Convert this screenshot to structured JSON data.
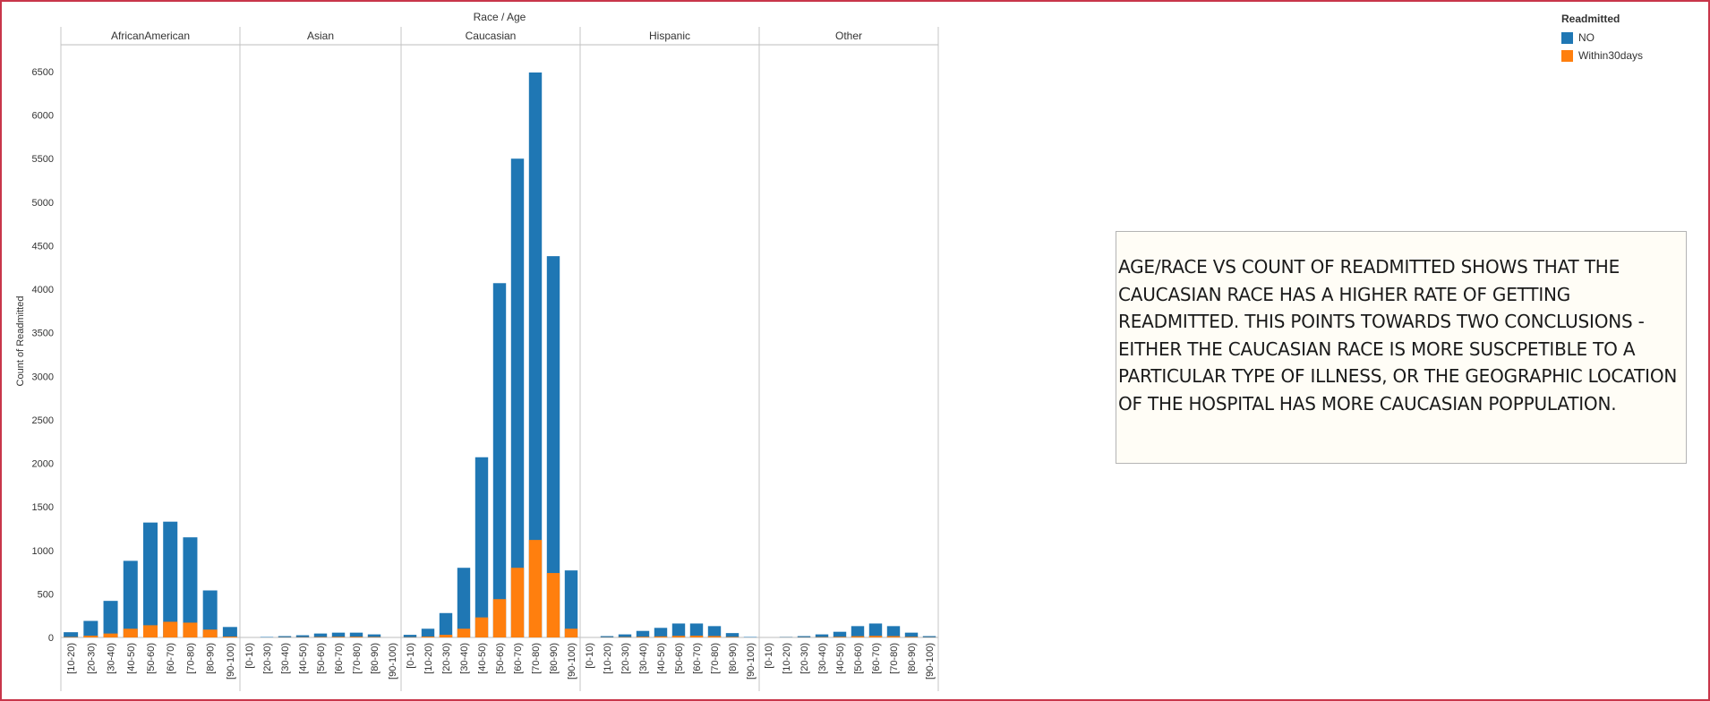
{
  "chart_data": {
    "type": "bar",
    "stacked": true,
    "title": "Race  /  Age",
    "ylabel": "Count of Readmitted",
    "ylim": [
      0,
      6800
    ],
    "yticks": [
      0,
      500,
      1000,
      1500,
      2000,
      2500,
      3000,
      3500,
      4000,
      4500,
      5000,
      5500,
      6000,
      6500
    ],
    "grid": false,
    "legend_position": "top-right",
    "series_names": [
      "NO",
      "Within30days"
    ],
    "colors": {
      "NO": "#1f77b4",
      "Within30days": "#ff7f0e"
    },
    "panels": [
      {
        "name": "AfricanAmerican",
        "categories": [
          "[10-20)",
          "[20-30)",
          "[30-40)",
          "[40-50)",
          "[50-60)",
          "[60-70)",
          "[70-80)",
          "[80-90)",
          "[90-100)"
        ],
        "NO": [
          60,
          190,
          420,
          880,
          1320,
          1330,
          1150,
          540,
          120
        ],
        "Within30days": [
          5,
          20,
          45,
          100,
          140,
          180,
          170,
          90,
          10
        ]
      },
      {
        "name": "Asian",
        "categories": [
          "[0-10)",
          "[20-30)",
          "[30-40)",
          "[40-50)",
          "[50-60)",
          "[60-70)",
          "[70-80)",
          "[80-90)",
          "[90-100)"
        ],
        "NO": [
          0,
          5,
          15,
          25,
          45,
          55,
          55,
          35,
          0
        ],
        "Within30days": [
          0,
          0,
          2,
          3,
          5,
          7,
          8,
          5,
          0
        ]
      },
      {
        "name": "Caucasian",
        "categories": [
          "[0-10)",
          "[10-20)",
          "[20-30)",
          "[30-40)",
          "[40-50)",
          "[50-60)",
          "[60-70)",
          "[70-80)",
          "[80-90)",
          "[90-100)"
        ],
        "NO": [
          30,
          100,
          280,
          800,
          2070,
          4070,
          5500,
          6490,
          4380,
          770
        ],
        "Within30days": [
          3,
          10,
          30,
          100,
          230,
          440,
          800,
          1120,
          740,
          100
        ]
      },
      {
        "name": "Hispanic",
        "categories": [
          "[0-10)",
          "[10-20)",
          "[20-30)",
          "[30-40)",
          "[40-50)",
          "[50-60)",
          "[60-70)",
          "[70-80)",
          "[80-90)",
          "[90-100)"
        ],
        "NO": [
          0,
          15,
          35,
          75,
          110,
          160,
          160,
          130,
          50,
          5
        ],
        "Within30days": [
          0,
          2,
          4,
          8,
          12,
          18,
          20,
          16,
          6,
          0
        ]
      },
      {
        "name": "Other",
        "categories": [
          "[0-10)",
          "[10-20)",
          "[20-30)",
          "[30-40)",
          "[40-50)",
          "[50-60)",
          "[60-70)",
          "[70-80)",
          "[80-90)",
          "[90-100)"
        ],
        "NO": [
          0,
          5,
          15,
          35,
          65,
          130,
          160,
          130,
          55,
          15
        ],
        "Within30days": [
          0,
          1,
          2,
          4,
          7,
          14,
          18,
          15,
          7,
          2
        ]
      }
    ]
  },
  "legend": {
    "title": "Readmitted",
    "items": [
      {
        "label": "NO",
        "color": "#1f77b4"
      },
      {
        "label": "Within30days",
        "color": "#ff7f0e"
      }
    ]
  },
  "annotation": {
    "text": "AGE/RACE VS COUNT OF READMITTED SHOWS THAT THE CAUCASIAN RACE HAS A HIGHER RATE OF GETTING READMITTED. THIS POINTS TOWARDS TWO CONCLUSIONS - EITHER THE CAUCASIAN RACE IS MORE SUSCPETIBLE TO A PARTICULAR TYPE OF ILLNESS, OR THE GEOGRAPHIC LOCATION OF THE HOSPITAL HAS MORE CAUCASIAN POPPULATION."
  }
}
